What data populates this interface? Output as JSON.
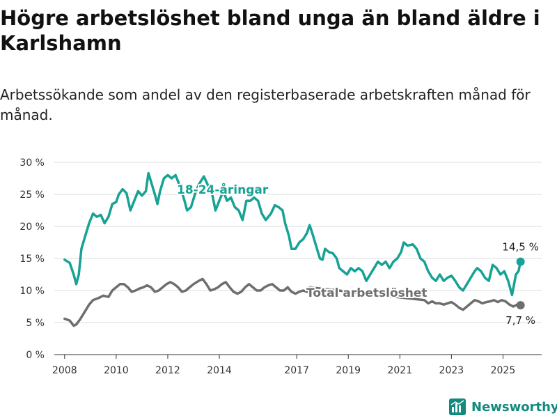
{
  "title": "Högre arbetslöshet bland unga än bland äldre i Karlshamn",
  "subtitle": "Arbetssökande som andel av den registerbaserade arbetskraften månad för månad.",
  "brand": {
    "name": "Newsworthy",
    "color": "#128a7d",
    "icon": "bar-chart-logo-icon"
  },
  "chart_data": {
    "type": "line",
    "ylim": [
      0,
      30
    ],
    "yticks": [
      0,
      5,
      10,
      15,
      20,
      25,
      30
    ],
    "ytick_labels": [
      "0 %",
      "5 %",
      "10 %",
      "15 %",
      "20 %",
      "25 %",
      "30 %"
    ],
    "xlim": [
      2007.6,
      2026.5
    ],
    "xticks": [
      2008,
      2010,
      2012,
      2014,
      2017,
      2019,
      2021,
      2023,
      2025
    ],
    "xtick_labels": [
      "2008",
      "2010",
      "2012",
      "2014",
      "2017",
      "2019",
      "2021",
      "2023",
      "2025"
    ],
    "grid": true,
    "series": [
      {
        "name": "18-24-åringar",
        "color": "#16a294",
        "end_label": "14,5 %",
        "points": [
          [
            2008.0,
            14.8
          ],
          [
            2008.2,
            14.3
          ],
          [
            2008.35,
            12.5
          ],
          [
            2008.45,
            11.0
          ],
          [
            2008.55,
            12.5
          ],
          [
            2008.65,
            16.5
          ],
          [
            2008.8,
            18.5
          ],
          [
            2008.95,
            20.5
          ],
          [
            2009.1,
            22.0
          ],
          [
            2009.25,
            21.5
          ],
          [
            2009.4,
            21.8
          ],
          [
            2009.55,
            20.5
          ],
          [
            2009.7,
            21.5
          ],
          [
            2009.85,
            23.5
          ],
          [
            2010.0,
            23.8
          ],
          [
            2010.1,
            25.0
          ],
          [
            2010.25,
            25.8
          ],
          [
            2010.4,
            25.2
          ],
          [
            2010.55,
            22.5
          ],
          [
            2010.7,
            24.0
          ],
          [
            2010.85,
            25.5
          ],
          [
            2011.0,
            24.8
          ],
          [
            2011.15,
            25.5
          ],
          [
            2011.25,
            28.3
          ],
          [
            2011.35,
            27.0
          ],
          [
            2011.5,
            25.0
          ],
          [
            2011.6,
            23.5
          ],
          [
            2011.7,
            25.5
          ],
          [
            2011.85,
            27.5
          ],
          [
            2012.0,
            28.0
          ],
          [
            2012.15,
            27.5
          ],
          [
            2012.3,
            28.0
          ],
          [
            2012.5,
            26.0
          ],
          [
            2012.65,
            24.0
          ],
          [
            2012.75,
            22.5
          ],
          [
            2012.9,
            23.0
          ],
          [
            2013.05,
            25.0
          ],
          [
            2013.2,
            26.5
          ],
          [
            2013.4,
            27.8
          ],
          [
            2013.55,
            26.5
          ],
          [
            2013.7,
            25.5
          ],
          [
            2013.85,
            22.5
          ],
          [
            2014.0,
            24.0
          ],
          [
            2014.15,
            25.5
          ],
          [
            2014.3,
            24.0
          ],
          [
            2014.45,
            24.5
          ],
          [
            2014.6,
            23.0
          ],
          [
            2014.75,
            22.5
          ],
          [
            2014.9,
            21.0
          ],
          [
            2015.05,
            24.0
          ],
          [
            2015.2,
            24.0
          ],
          [
            2015.35,
            24.5
          ],
          [
            2015.5,
            24.0
          ],
          [
            2015.65,
            22.0
          ],
          [
            2015.8,
            21.0
          ],
          [
            2016.0,
            22.0
          ],
          [
            2016.15,
            23.3
          ],
          [
            2016.3,
            23.0
          ],
          [
            2016.45,
            22.5
          ],
          [
            2016.55,
            20.5
          ],
          [
            2016.7,
            18.5
          ],
          [
            2016.8,
            16.5
          ],
          [
            2016.95,
            16.5
          ],
          [
            2017.1,
            17.5
          ],
          [
            2017.25,
            18.0
          ],
          [
            2017.4,
            19.0
          ],
          [
            2017.5,
            20.2
          ],
          [
            2017.6,
            19.0
          ],
          [
            2017.75,
            17.0
          ],
          [
            2017.9,
            15.0
          ],
          [
            2018.0,
            14.8
          ],
          [
            2018.1,
            16.5
          ],
          [
            2018.25,
            16.0
          ],
          [
            2018.4,
            15.8
          ],
          [
            2018.55,
            15.0
          ],
          [
            2018.65,
            13.5
          ],
          [
            2018.8,
            13.0
          ],
          [
            2018.95,
            12.5
          ],
          [
            2019.1,
            13.5
          ],
          [
            2019.25,
            13.0
          ],
          [
            2019.4,
            13.5
          ],
          [
            2019.55,
            13.0
          ],
          [
            2019.7,
            11.5
          ],
          [
            2019.85,
            12.5
          ],
          [
            2020.0,
            13.5
          ],
          [
            2020.15,
            14.5
          ],
          [
            2020.3,
            14.0
          ],
          [
            2020.45,
            14.5
          ],
          [
            2020.6,
            13.5
          ],
          [
            2020.75,
            14.5
          ],
          [
            2020.9,
            15.0
          ],
          [
            2021.05,
            16.0
          ],
          [
            2021.15,
            17.5
          ],
          [
            2021.3,
            17.0
          ],
          [
            2021.5,
            17.2
          ],
          [
            2021.65,
            16.5
          ],
          [
            2021.8,
            15.0
          ],
          [
            2021.95,
            14.5
          ],
          [
            2022.1,
            13.0
          ],
          [
            2022.25,
            12.0
          ],
          [
            2022.4,
            11.5
          ],
          [
            2022.55,
            12.5
          ],
          [
            2022.7,
            11.5
          ],
          [
            2022.85,
            12.0
          ],
          [
            2023.0,
            12.3
          ],
          [
            2023.15,
            11.5
          ],
          [
            2023.3,
            10.5
          ],
          [
            2023.45,
            10.0
          ],
          [
            2023.6,
            11.0
          ],
          [
            2023.75,
            12.0
          ],
          [
            2023.9,
            13.0
          ],
          [
            2024.0,
            13.5
          ],
          [
            2024.15,
            13.0
          ],
          [
            2024.3,
            12.0
          ],
          [
            2024.45,
            11.5
          ],
          [
            2024.6,
            14.0
          ],
          [
            2024.75,
            13.5
          ],
          [
            2024.9,
            12.5
          ],
          [
            2025.05,
            13.0
          ],
          [
            2025.2,
            11.5
          ],
          [
            2025.35,
            9.3
          ],
          [
            2025.5,
            12.5
          ],
          [
            2025.6,
            13.0
          ],
          [
            2025.68,
            14.5
          ]
        ]
      },
      {
        "name": "Total arbetslöshet",
        "color": "#6e6e6e",
        "end_label": "7,7 %",
        "points": [
          [
            2008.0,
            5.6
          ],
          [
            2008.2,
            5.3
          ],
          [
            2008.35,
            4.5
          ],
          [
            2008.45,
            4.7
          ],
          [
            2008.6,
            5.5
          ],
          [
            2008.8,
            6.8
          ],
          [
            2008.95,
            7.8
          ],
          [
            2009.1,
            8.5
          ],
          [
            2009.3,
            8.8
          ],
          [
            2009.5,
            9.2
          ],
          [
            2009.7,
            9.0
          ],
          [
            2009.85,
            10.0
          ],
          [
            2010.0,
            10.5
          ],
          [
            2010.15,
            11.0
          ],
          [
            2010.3,
            11.0
          ],
          [
            2010.45,
            10.5
          ],
          [
            2010.6,
            9.8
          ],
          [
            2010.75,
            10.0
          ],
          [
            2010.9,
            10.3
          ],
          [
            2011.05,
            10.5
          ],
          [
            2011.2,
            10.8
          ],
          [
            2011.35,
            10.5
          ],
          [
            2011.5,
            9.8
          ],
          [
            2011.65,
            10.0
          ],
          [
            2011.8,
            10.5
          ],
          [
            2011.95,
            11.0
          ],
          [
            2012.1,
            11.3
          ],
          [
            2012.25,
            11.0
          ],
          [
            2012.4,
            10.5
          ],
          [
            2012.55,
            9.8
          ],
          [
            2012.7,
            10.0
          ],
          [
            2012.85,
            10.5
          ],
          [
            2013.0,
            11.0
          ],
          [
            2013.2,
            11.5
          ],
          [
            2013.35,
            11.8
          ],
          [
            2013.5,
            11.0
          ],
          [
            2013.65,
            10.0
          ],
          [
            2013.8,
            10.2
          ],
          [
            2013.95,
            10.5
          ],
          [
            2014.1,
            11.0
          ],
          [
            2014.25,
            11.3
          ],
          [
            2014.4,
            10.5
          ],
          [
            2014.55,
            9.8
          ],
          [
            2014.7,
            9.5
          ],
          [
            2014.85,
            9.8
          ],
          [
            2015.0,
            10.5
          ],
          [
            2015.15,
            11.0
          ],
          [
            2015.3,
            10.5
          ],
          [
            2015.45,
            10.0
          ],
          [
            2015.6,
            10.0
          ],
          [
            2015.75,
            10.5
          ],
          [
            2015.9,
            10.8
          ],
          [
            2016.05,
            11.0
          ],
          [
            2016.2,
            10.5
          ],
          [
            2016.35,
            10.0
          ],
          [
            2016.5,
            10.0
          ],
          [
            2016.65,
            10.5
          ],
          [
            2016.8,
            9.8
          ],
          [
            2016.95,
            9.5
          ],
          [
            2017.1,
            9.8
          ],
          [
            2017.25,
            10.0
          ],
          [
            2017.4,
            9.8
          ],
          [
            2017.5,
            10.5
          ],
          [
            2021.95,
            8.5
          ],
          [
            2022.1,
            8.0
          ],
          [
            2022.25,
            8.3
          ],
          [
            2022.4,
            8.0
          ],
          [
            2022.55,
            8.0
          ],
          [
            2022.7,
            7.8
          ],
          [
            2022.85,
            8.0
          ],
          [
            2023.0,
            8.2
          ],
          [
            2023.15,
            7.8
          ],
          [
            2023.3,
            7.3
          ],
          [
            2023.45,
            7.0
          ],
          [
            2023.6,
            7.5
          ],
          [
            2023.75,
            8.0
          ],
          [
            2023.9,
            8.5
          ],
          [
            2024.05,
            8.3
          ],
          [
            2024.2,
            8.0
          ],
          [
            2024.35,
            8.2
          ],
          [
            2024.5,
            8.3
          ],
          [
            2024.65,
            8.5
          ],
          [
            2024.8,
            8.2
          ],
          [
            2024.95,
            8.5
          ],
          [
            2025.1,
            8.3
          ],
          [
            2025.25,
            7.8
          ],
          [
            2025.4,
            7.5
          ],
          [
            2025.55,
            7.8
          ],
          [
            2025.68,
            7.7
          ]
        ]
      }
    ]
  }
}
